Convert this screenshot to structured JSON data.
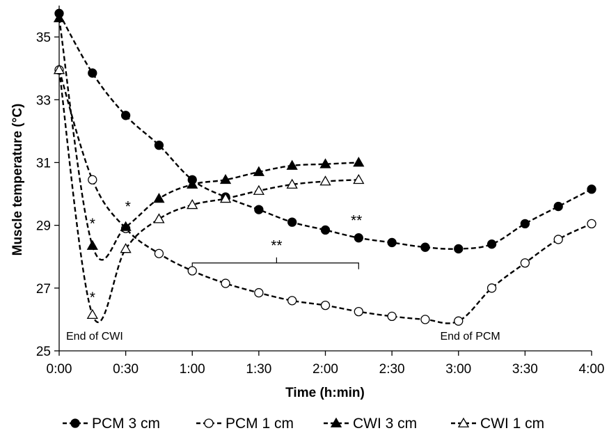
{
  "chart_data": {
    "type": "line",
    "title": "",
    "xlabel": "Time (h:min)",
    "ylabel": "Muscle temperature (°C)",
    "xlim": [
      0,
      240
    ],
    "ylim": [
      25,
      36
    ],
    "x_ticks": [
      {
        "value": 0,
        "label": "0:00"
      },
      {
        "value": 30,
        "label": "0:30"
      },
      {
        "value": 60,
        "label": "1:00"
      },
      {
        "value": 90,
        "label": "1:30"
      },
      {
        "value": 120,
        "label": "2:00"
      },
      {
        "value": 150,
        "label": "2:30"
      },
      {
        "value": 180,
        "label": "3:00"
      },
      {
        "value": 210,
        "label": "3:30"
      },
      {
        "value": 240,
        "label": "4:00"
      }
    ],
    "y_ticks": [
      25,
      27,
      29,
      31,
      33,
      35
    ],
    "legend_position": "bottom",
    "series": [
      {
        "name": "PCM 3 cm",
        "marker": "filled-circle",
        "x": [
          0,
          15,
          30,
          45,
          60,
          75,
          90,
          105,
          120,
          135,
          150,
          165,
          180,
          195,
          210,
          225,
          240
        ],
        "y": [
          35.75,
          33.85,
          32.5,
          31.55,
          30.45,
          29.9,
          29.5,
          29.1,
          28.85,
          28.6,
          28.45,
          28.3,
          28.25,
          28.4,
          29.05,
          29.6,
          30.15
        ]
      },
      {
        "name": "PCM 1 cm",
        "marker": "open-circle",
        "x": [
          0,
          15,
          30,
          45,
          60,
          75,
          90,
          105,
          120,
          135,
          150,
          165,
          180,
          195,
          210,
          225,
          240
        ],
        "y": [
          33.95,
          30.45,
          28.9,
          28.1,
          27.55,
          27.15,
          26.85,
          26.6,
          26.45,
          26.25,
          26.1,
          26.0,
          25.95,
          27.0,
          27.8,
          28.55,
          29.05
        ]
      },
      {
        "name": "CWI 3 cm",
        "marker": "filled-triangle",
        "x": [
          0,
          15,
          30,
          45,
          60,
          75,
          90,
          105,
          120,
          135
        ],
        "y": [
          35.6,
          28.35,
          28.95,
          29.85,
          30.3,
          30.45,
          30.7,
          30.9,
          30.95,
          31.0
        ]
      },
      {
        "name": "CWI 1 cm",
        "marker": "open-triangle",
        "x": [
          0,
          15,
          30,
          45,
          60,
          75,
          90,
          105,
          120,
          135
        ],
        "y": [
          33.95,
          26.15,
          28.25,
          29.2,
          29.65,
          29.85,
          30.1,
          30.3,
          30.4,
          30.45
        ]
      }
    ],
    "annotations": [
      {
        "text": "*",
        "x": 15,
        "y": 28.9
      },
      {
        "text": "*",
        "x": 31,
        "y": 29.45
      },
      {
        "text": "*",
        "x": 15,
        "y": 26.55
      },
      {
        "text": "**",
        "x": 134,
        "y": 29.0
      },
      {
        "text": "**",
        "x": 98,
        "y": 28.2
      },
      {
        "text": "End of CWI",
        "x": 0,
        "y": 25.35
      },
      {
        "text": "End of PCM",
        "x": 180,
        "y": 25.35
      }
    ],
    "bracket": {
      "x_start": 60,
      "x_end": 135,
      "y": 27.8
    }
  }
}
